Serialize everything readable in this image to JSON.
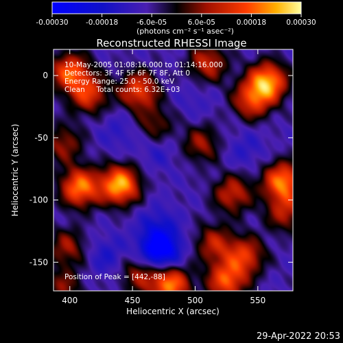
{
  "chart_data": {
    "type": "heatmap",
    "title": "Reconstructed RHESSI Image",
    "xlabel": "Heliocentric X (arcsec)",
    "ylabel": "Heliocentric Y (arcsec)",
    "xlim": [
      387,
      578
    ],
    "ylim": [
      -173,
      21
    ],
    "x_ticks": [
      400,
      450,
      500,
      550
    ],
    "y_ticks": [
      0,
      -50,
      -100,
      -150
    ],
    "colorbar": {
      "range": [
        -0.0003,
        0.0003
      ],
      "tick_values": [
        -0.0003,
        -0.00018,
        -6e-05,
        6e-05,
        0.00018,
        0.0003
      ],
      "tick_labels": [
        "-0.00030",
        "-0.00018",
        "-6.0e-05",
        "6.0e-05",
        "0.00018",
        "0.00030"
      ],
      "units": "(photons cm⁻² s⁻¹ asec⁻²)"
    },
    "annotations": [
      "10-May-2005 01:08:16.000 to 01:14:16.000",
      "Detectors: 3F 4F 5F 6F 7F 8F, Att 0",
      "Energy Range: 25.0 - 50.0 keV",
      "Clean     Total counts: 6.32E+03"
    ],
    "peak_label": "Position of Peak = [442,-88]",
    "peak": [
      442,
      -88
    ],
    "blobs": [
      {
        "x": 440,
        "y": -88,
        "v": 0.0003
      },
      {
        "x": 408,
        "y": -90,
        "v": 0.00026
      },
      {
        "x": 395,
        "y": -55,
        "v": 0.00012
      },
      {
        "x": 400,
        "y": 3,
        "v": 0.00022
      },
      {
        "x": 415,
        "y": -15,
        "v": 0.00018
      },
      {
        "x": 455,
        "y": -12,
        "v": 0.0002
      },
      {
        "x": 468,
        "y": -40,
        "v": 0.0001
      },
      {
        "x": 510,
        "y": 10,
        "v": 0.00016
      },
      {
        "x": 558,
        "y": -5,
        "v": 0.00028
      },
      {
        "x": 545,
        "y": -20,
        "v": 0.00018
      },
      {
        "x": 505,
        "y": -55,
        "v": 0.00012
      },
      {
        "x": 570,
        "y": -85,
        "v": 0.00026
      },
      {
        "x": 572,
        "y": -110,
        "v": 0.00014
      },
      {
        "x": 530,
        "y": -95,
        "v": 0.00016
      },
      {
        "x": 515,
        "y": -135,
        "v": 0.00014
      },
      {
        "x": 540,
        "y": -145,
        "v": 0.00018
      },
      {
        "x": 525,
        "y": -165,
        "v": 0.00022
      },
      {
        "x": 480,
        "y": -168,
        "v": 0.00026
      },
      {
        "x": 455,
        "y": -160,
        "v": 0.00012
      },
      {
        "x": 398,
        "y": -138,
        "v": 0.00012
      },
      {
        "x": 395,
        "y": -170,
        "v": 0.0001
      },
      {
        "x": 430,
        "y": -145,
        "v": -0.0001
      },
      {
        "x": 470,
        "y": -60,
        "v": -8e-05
      },
      {
        "x": 470,
        "y": -120,
        "v": -0.0001
      },
      {
        "x": 472,
        "y": -140,
        "v": -0.0003
      },
      {
        "x": 440,
        "y": -45,
        "v": -8e-05
      },
      {
        "x": 500,
        "y": -20,
        "v": -6e-05
      },
      {
        "x": 540,
        "y": -60,
        "v": -8e-05
      }
    ]
  },
  "timestamp": "29-Apr-2022 20:53"
}
